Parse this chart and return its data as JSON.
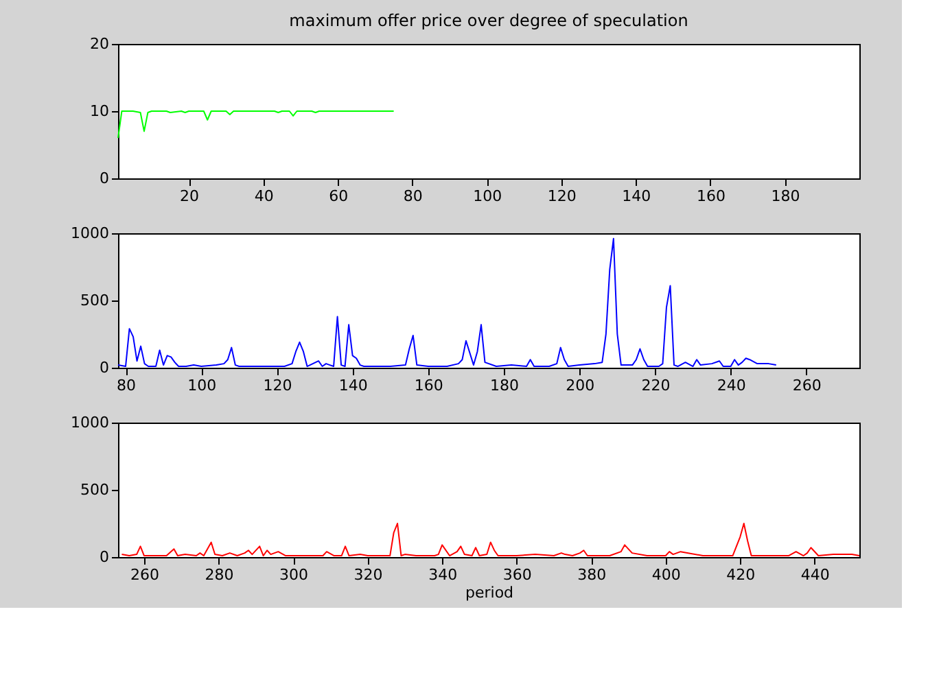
{
  "chart_data": [
    {
      "type": "line",
      "title": "maximum offer price over degree of speculation",
      "xlim": [
        1,
        200
      ],
      "xticks": [
        20,
        40,
        60,
        80,
        100,
        120,
        140,
        160,
        180
      ],
      "ylim": [
        0,
        20
      ],
      "yticks": [
        0,
        10,
        20
      ],
      "grid": false,
      "series": [
        {
          "color": "#00ff00",
          "x": [
            1,
            2,
            3,
            5,
            7,
            8,
            9,
            10,
            14,
            15,
            18,
            19,
            20,
            24,
            25,
            26,
            30,
            31,
            32,
            40,
            43,
            44,
            45,
            47,
            48,
            49,
            53,
            54,
            55,
            60,
            65,
            70,
            75
          ],
          "values": [
            6,
            10,
            10,
            10,
            9.8,
            7,
            9.8,
            10,
            10,
            9.8,
            10,
            9.8,
            10,
            10,
            8.7,
            10,
            10,
            9.5,
            10,
            10,
            10,
            9.8,
            10,
            10,
            9.3,
            10,
            10,
            9.8,
            10,
            10,
            10,
            10,
            10
          ]
        }
      ]
    },
    {
      "type": "line",
      "xlim": [
        78,
        274
      ],
      "xticks": [
        80,
        100,
        120,
        140,
        160,
        180,
        200,
        220,
        240,
        260
      ],
      "ylim": [
        0,
        1000
      ],
      "yticks": [
        0,
        500,
        1000
      ],
      "grid": false,
      "series": [
        {
          "color": "#0000ff",
          "x": [
            78,
            80,
            81,
            82,
            83,
            84,
            85,
            86,
            88,
            89,
            90,
            91,
            92,
            93,
            94,
            96,
            98,
            100,
            104,
            106,
            107,
            108,
            109,
            110,
            120,
            122,
            124,
            125,
            126,
            127,
            128,
            131,
            132,
            133,
            134,
            135,
            136,
            137,
            138,
            139,
            140,
            141,
            142,
            143,
            150,
            154,
            155,
            156,
            157,
            160,
            165,
            168,
            169,
            170,
            172,
            173,
            174,
            175,
            178,
            182,
            186,
            187,
            188,
            192,
            194,
            195,
            196,
            197,
            200,
            204,
            206,
            207,
            208,
            209,
            210,
            211,
            214,
            215,
            216,
            217,
            218,
            221,
            222,
            223,
            224,
            225,
            226,
            228,
            230,
            231,
            232,
            235,
            237,
            238,
            240,
            241,
            242,
            243,
            244,
            245,
            247,
            250,
            252
          ],
          "values": [
            20,
            10,
            290,
            230,
            50,
            160,
            30,
            10,
            10,
            130,
            20,
            90,
            80,
            40,
            10,
            10,
            20,
            10,
            20,
            30,
            60,
            150,
            20,
            10,
            10,
            10,
            30,
            120,
            190,
            120,
            10,
            50,
            10,
            30,
            20,
            10,
            380,
            20,
            10,
            320,
            90,
            70,
            20,
            10,
            10,
            20,
            140,
            240,
            20,
            10,
            10,
            30,
            60,
            200,
            20,
            120,
            320,
            40,
            10,
            20,
            10,
            60,
            10,
            10,
            30,
            150,
            60,
            10,
            20,
            30,
            40,
            250,
            730,
            960,
            250,
            20,
            20,
            60,
            140,
            60,
            10,
            10,
            30,
            450,
            610,
            20,
            10,
            40,
            10,
            60,
            20,
            30,
            50,
            10,
            10,
            60,
            20,
            40,
            70,
            60,
            30,
            30,
            20
          ]
        }
      ]
    },
    {
      "type": "line",
      "xlabel": "period",
      "xlim": [
        253,
        452
      ],
      "xticks": [
        260,
        280,
        300,
        320,
        340,
        360,
        380,
        400,
        420,
        440
      ],
      "ylim": [
        0,
        1000
      ],
      "yticks": [
        0,
        500,
        1000
      ],
      "grid": false,
      "series": [
        {
          "color": "#ff0000",
          "x": [
            254,
            256,
            258,
            259,
            260,
            262,
            266,
            268,
            269,
            271,
            274,
            275,
            276,
            278,
            279,
            281,
            283,
            285,
            287,
            288,
            289,
            291,
            292,
            293,
            294,
            296,
            298,
            300,
            302,
            308,
            309,
            311,
            313,
            314,
            315,
            318,
            320,
            326,
            327,
            328,
            329,
            330,
            333,
            338,
            339,
            340,
            342,
            344,
            345,
            346,
            348,
            349,
            350,
            352,
            353,
            354,
            355,
            360,
            365,
            370,
            372,
            373,
            375,
            377,
            378,
            379,
            385,
            388,
            389,
            391,
            395,
            400,
            401,
            402,
            404,
            410,
            418,
            420,
            421,
            422,
            423,
            426,
            433,
            435,
            437,
            438,
            439,
            441,
            445,
            450,
            452
          ],
          "values": [
            20,
            10,
            20,
            80,
            10,
            10,
            10,
            60,
            10,
            20,
            10,
            30,
            10,
            110,
            20,
            10,
            30,
            10,
            30,
            50,
            20,
            80,
            10,
            50,
            20,
            40,
            10,
            10,
            10,
            10,
            40,
            10,
            10,
            80,
            10,
            20,
            10,
            10,
            180,
            250,
            10,
            20,
            10,
            10,
            20,
            90,
            10,
            40,
            80,
            20,
            10,
            70,
            10,
            20,
            110,
            50,
            10,
            10,
            20,
            10,
            30,
            20,
            10,
            30,
            50,
            10,
            10,
            40,
            90,
            30,
            10,
            10,
            40,
            20,
            40,
            10,
            10,
            150,
            250,
            120,
            10,
            10,
            10,
            40,
            10,
            30,
            70,
            10,
            20,
            20,
            10
          ]
        }
      ]
    }
  ]
}
